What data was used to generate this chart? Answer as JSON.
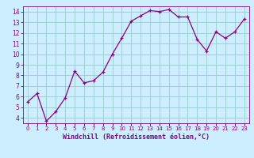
{
  "x": [
    0,
    1,
    2,
    3,
    4,
    5,
    6,
    7,
    8,
    9,
    10,
    11,
    12,
    13,
    14,
    15,
    16,
    17,
    18,
    19,
    20,
    21,
    22,
    23
  ],
  "y": [
    5.5,
    6.3,
    3.7,
    4.6,
    5.9,
    8.4,
    7.3,
    7.5,
    8.3,
    10.0,
    11.5,
    13.1,
    13.6,
    14.1,
    14.0,
    14.2,
    13.5,
    13.5,
    11.4,
    10.3,
    12.1,
    11.5,
    12.1,
    13.3
  ],
  "line_color": "#880088",
  "marker_color": "#880088",
  "bg_color": "#cceeff",
  "grid_color": "#99cccc",
  "xlabel": "Windchill (Refroidissement éolien,°C)",
  "xlabel_color": "#880088",
  "tick_color": "#880088",
  "xlim": [
    -0.5,
    23.5
  ],
  "ylim": [
    3.5,
    14.5
  ],
  "yticks": [
    4,
    5,
    6,
    7,
    8,
    9,
    10,
    11,
    12,
    13,
    14
  ],
  "xtick_labels": [
    "0",
    "1",
    "2",
    "3",
    "4",
    "5",
    "6",
    "7",
    "8",
    "9",
    "10",
    "11",
    "12",
    "13",
    "14",
    "15",
    "16",
    "17",
    "18",
    "19",
    "20",
    "21",
    "22",
    "23"
  ]
}
